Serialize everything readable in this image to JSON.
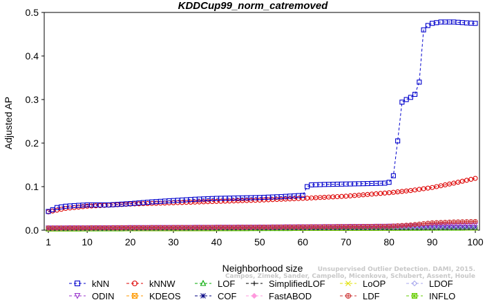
{
  "chart_data": {
    "type": "line",
    "title": "KDDCup99_norm_catremoved",
    "xlabel": "Neighborhood size",
    "ylabel": "Adjusted AP",
    "xlim": [
      1,
      100
    ],
    "ylim": [
      0,
      0.5
    ],
    "xticks": [
      1,
      10,
      20,
      30,
      40,
      50,
      60,
      70,
      80,
      90,
      100
    ],
    "yticks": [
      0.0,
      0.1,
      0.2,
      0.3,
      0.4,
      0.5
    ],
    "grid": false,
    "legend_position": "bottom",
    "watermark": [
      "Campos, Zimek, Sander, Campello, Micenkova, Schubert, Assent, Houle",
      "Unsupervised Outlier Detection. DAMI, 2015."
    ],
    "series": [
      {
        "name": "kNN",
        "color": "#0000cc",
        "marker": "square",
        "dash": true,
        "points": [
          [
            1,
            0.043
          ],
          [
            2,
            0.047
          ],
          [
            3,
            0.052
          ],
          [
            5,
            0.055
          ],
          [
            8,
            0.057
          ],
          [
            10,
            0.058
          ],
          [
            15,
            0.058
          ],
          [
            20,
            0.061
          ],
          [
            25,
            0.065
          ],
          [
            30,
            0.068
          ],
          [
            35,
            0.071
          ],
          [
            40,
            0.073
          ],
          [
            45,
            0.074
          ],
          [
            50,
            0.075
          ],
          [
            55,
            0.077
          ],
          [
            60,
            0.08
          ],
          [
            61,
            0.1
          ],
          [
            62,
            0.104
          ],
          [
            65,
            0.105
          ],
          [
            70,
            0.106
          ],
          [
            75,
            0.107
          ],
          [
            79,
            0.108
          ],
          [
            80,
            0.11
          ],
          [
            81,
            0.125
          ],
          [
            82,
            0.205
          ],
          [
            83,
            0.294
          ],
          [
            84,
            0.3
          ],
          [
            85,
            0.305
          ],
          [
            86,
            0.312
          ],
          [
            87,
            0.34
          ],
          [
            88,
            0.46
          ],
          [
            89,
            0.47
          ],
          [
            90,
            0.475
          ],
          [
            92,
            0.478
          ],
          [
            95,
            0.478
          ],
          [
            98,
            0.476
          ],
          [
            100,
            0.475
          ]
        ]
      },
      {
        "name": "kNNW",
        "color": "#dd0000",
        "marker": "circle",
        "dash": true,
        "points": [
          [
            1,
            0.042
          ],
          [
            5,
            0.05
          ],
          [
            10,
            0.055
          ],
          [
            20,
            0.06
          ],
          [
            30,
            0.063
          ],
          [
            40,
            0.066
          ],
          [
            50,
            0.069
          ],
          [
            60,
            0.073
          ],
          [
            70,
            0.078
          ],
          [
            80,
            0.086
          ],
          [
            85,
            0.091
          ],
          [
            90,
            0.098
          ],
          [
            95,
            0.108
          ],
          [
            100,
            0.119
          ]
        ]
      },
      {
        "name": "LOF",
        "color": "#00aa00",
        "marker": "triangle-up",
        "dash": true,
        "points": [
          [
            1,
            0.002
          ],
          [
            50,
            0.003
          ],
          [
            100,
            0.004
          ]
        ]
      },
      {
        "name": "SimplifiedLOF",
        "color": "#000000",
        "marker": "plus",
        "dash": true,
        "points": [
          [
            1,
            0.004
          ],
          [
            50,
            0.005
          ],
          [
            100,
            0.006
          ]
        ]
      },
      {
        "name": "LoOP",
        "color": "#e0e000",
        "marker": "cross",
        "dash": true,
        "points": [
          [
            1,
            0.003
          ],
          [
            50,
            0.004
          ],
          [
            100,
            0.005
          ]
        ]
      },
      {
        "name": "LDOF",
        "color": "#aaaaee",
        "marker": "diamond",
        "dash": true,
        "points": [
          [
            1,
            0.004
          ],
          [
            50,
            0.006
          ],
          [
            100,
            0.008
          ]
        ]
      },
      {
        "name": "ODIN",
        "color": "#9933cc",
        "marker": "triangle-down",
        "dash": true,
        "points": [
          [
            1,
            0.005
          ],
          [
            50,
            0.007
          ],
          [
            80,
            0.009
          ],
          [
            100,
            0.012
          ]
        ]
      },
      {
        "name": "KDEOS",
        "color": "#ff9900",
        "marker": "square-x",
        "dash": true,
        "points": [
          [
            1,
            0.003
          ],
          [
            50,
            0.004
          ],
          [
            100,
            0.005
          ]
        ]
      },
      {
        "name": "COF",
        "color": "#000080",
        "marker": "asterisk",
        "dash": true,
        "points": [
          [
            1,
            0.004
          ],
          [
            50,
            0.005
          ],
          [
            100,
            0.006
          ]
        ]
      },
      {
        "name": "FastABOD",
        "color": "#ff99dd",
        "marker": "diamond-filled",
        "dash": true,
        "points": [
          [
            1,
            0.003
          ],
          [
            50,
            0.004
          ],
          [
            100,
            0.005
          ]
        ]
      },
      {
        "name": "LDF",
        "color": "#cc3333",
        "marker": "circle-plus",
        "dash": true,
        "points": [
          [
            1,
            0.005
          ],
          [
            50,
            0.007
          ],
          [
            80,
            0.009
          ],
          [
            85,
            0.012
          ],
          [
            90,
            0.017
          ],
          [
            95,
            0.019
          ],
          [
            100,
            0.02
          ]
        ]
      },
      {
        "name": "INFLO",
        "color": "#66cc00",
        "marker": "square-star",
        "dash": true,
        "points": [
          [
            1,
            0.003
          ],
          [
            50,
            0.004
          ],
          [
            100,
            0.005
          ]
        ]
      }
    ]
  }
}
